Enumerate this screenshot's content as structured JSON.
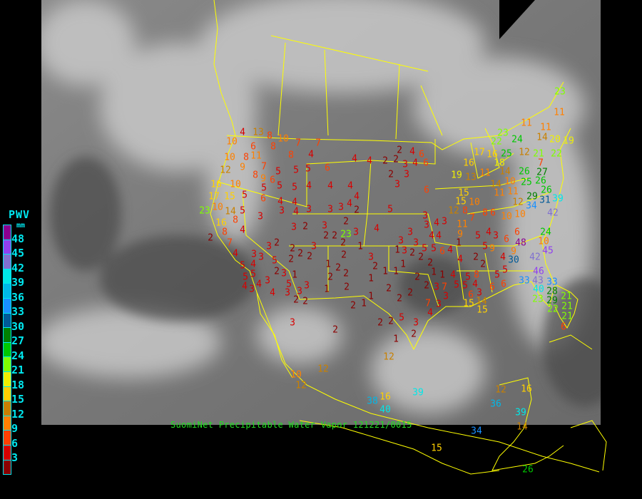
{
  "legend": {
    "title": "PWV",
    "unit": "mm",
    "ticks": [
      "48",
      "45",
      "42",
      "39",
      "36",
      "33",
      "30",
      "27",
      "24",
      "21",
      "18",
      "15",
      "12",
      "9",
      "6",
      "3"
    ],
    "colors": [
      "#8a0090",
      "#9040f0",
      "#8070d0",
      "#00e8e8",
      "#00b8e8",
      "#1890ff",
      "#005a98",
      "#008000",
      "#00c800",
      "#80ff00",
      "#f0f000",
      "#ffd000",
      "#c88000",
      "#ff8000",
      "#ff4000",
      "#d80000",
      "#8b0000"
    ]
  },
  "caption": "SuomiNet Precipitable Water Vapor 121221/0015",
  "colors": {
    "boundary": "#ffff00",
    "background": "#000000",
    "legend_text": "#00e8f0",
    "caption": "#20e020"
  },
  "station_values": [
    "4",
    "13",
    "8",
    "10",
    "7",
    "7",
    "10",
    "6",
    "8",
    "10",
    "8",
    "11",
    "8",
    "4",
    "12",
    "9",
    "7",
    "5",
    "5",
    "5",
    "6",
    "8",
    "9",
    "6",
    "5",
    "5",
    "5",
    "4",
    "4",
    "4",
    "16",
    "10",
    "17",
    "15",
    "10",
    "23",
    "14",
    "5",
    "6",
    "4",
    "4",
    "3",
    "3",
    "3",
    "4",
    "2",
    "4",
    "4",
    "3",
    "5",
    "3",
    "16",
    "8",
    "4",
    "8",
    "7",
    "4",
    "4",
    "3",
    "5",
    "3",
    "2",
    "3",
    "2",
    "23",
    "2",
    "3",
    "2",
    "2",
    "2",
    "3",
    "2",
    "4",
    "5",
    "2",
    "3",
    "2",
    "4",
    "6",
    "3",
    "6",
    "4",
    "4",
    "2",
    "2",
    "3",
    "4",
    "6",
    "2",
    "3",
    "2",
    "2",
    "3",
    "5",
    "5",
    "5",
    "2",
    "3",
    "2",
    "1",
    "5",
    "3",
    "4",
    "3",
    "4",
    "3",
    "4",
    "3",
    "3",
    "2",
    "2",
    "1",
    "2",
    "1",
    "2",
    "2",
    "2",
    "2",
    "1",
    "3",
    "2",
    "1",
    "1",
    "1",
    "2",
    "1",
    "2",
    "2",
    "2",
    "2",
    "2",
    "1",
    "1",
    "1",
    "2",
    "2",
    "2",
    "1",
    "1",
    "2",
    "2",
    "5",
    "3",
    "4",
    "3",
    "2",
    "1",
    "2",
    "3",
    "3",
    "3",
    "3",
    "3",
    "3",
    "3",
    "5",
    "3",
    "3",
    "4",
    "4",
    "3",
    "4",
    "6",
    "5",
    "4",
    "1",
    "4",
    "4",
    "5",
    "5",
    "5",
    "4",
    "6",
    "3",
    "2",
    "2",
    "8",
    "7",
    "7",
    "5",
    "5",
    "9",
    "5",
    "5",
    "4",
    "7",
    "11",
    "9",
    "8",
    "10",
    "8",
    "6",
    "10",
    "3",
    "4",
    "9",
    "6",
    "6",
    "6",
    "6",
    "14",
    "15",
    "15",
    "19",
    "16",
    "17",
    "16",
    "18",
    "14",
    "13",
    "11",
    "14",
    "11",
    "15",
    "15",
    "12",
    "10",
    "11",
    "10",
    "12",
    "11",
    "11",
    "14",
    "20",
    "19",
    "22",
    "21",
    "24",
    "25",
    "26",
    "25",
    "26",
    "27",
    "29",
    "31",
    "26",
    "34",
    "39",
    "42",
    "24",
    "10",
    "45",
    "48",
    "30",
    "42",
    "46",
    "33",
    "43",
    "40",
    "33",
    "28",
    "23",
    "29",
    "21",
    "21",
    "22",
    "21",
    "6",
    "7",
    "12",
    "11",
    "23",
    "22",
    "23",
    "10",
    "12",
    "12",
    "12",
    "16",
    "38",
    "40",
    "39",
    "12",
    "36",
    "39",
    "16",
    "34",
    "14",
    "15",
    "26"
  ]
}
